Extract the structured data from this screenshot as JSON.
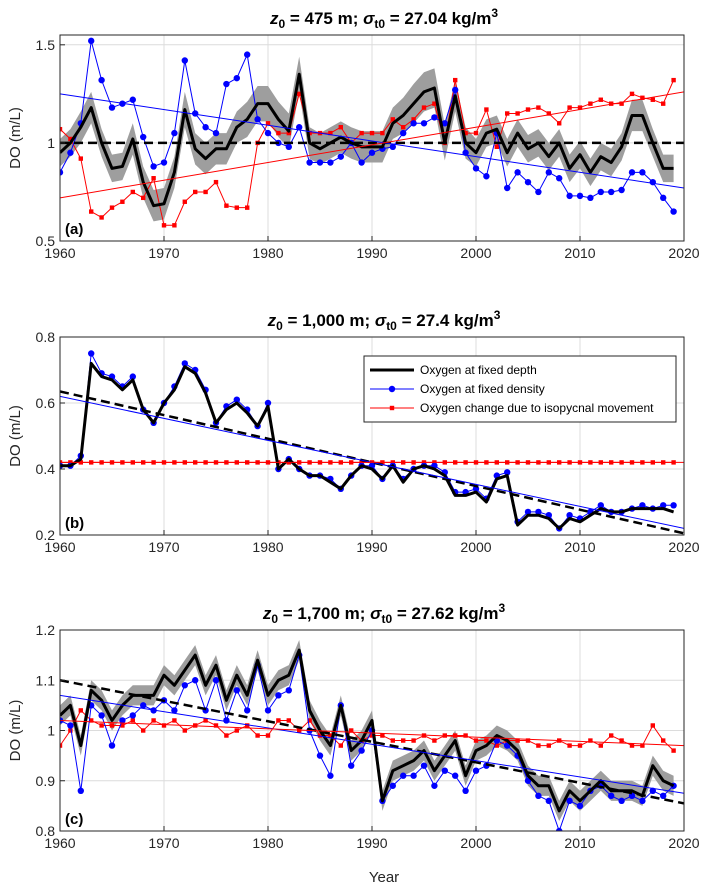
{
  "figure": {
    "xlabel": "Year"
  },
  "chart_data": [
    {
      "type": "line",
      "title": "z0 = 475 m; σt0 = 27.04 kg/m3",
      "title_parts": {
        "z": "z",
        "z_sub": "0",
        "z_rest": " = 475 m; ",
        "sigma": "σ",
        "sigma_sub": "t0",
        "sigma_rest": " = 27.04 kg/m",
        "sup": "3"
      },
      "panel_label": "(a)",
      "xlabel": "",
      "ylabel": "DO (m/L)",
      "xlim": [
        1960,
        2020
      ],
      "ylim": [
        0.5,
        1.55
      ],
      "xticks": [
        1960,
        1970,
        1980,
        1990,
        2000,
        2010,
        2020
      ],
      "yticks": [
        0.5,
        1,
        1.5
      ],
      "ytick_labels": [
        "0.5",
        "1",
        "1.5"
      ],
      "grid": true,
      "x": [
        1960,
        1961,
        1962,
        1963,
        1964,
        1965,
        1966,
        1967,
        1968,
        1969,
        1970,
        1971,
        1972,
        1973,
        1974,
        1975,
        1976,
        1977,
        1978,
        1979,
        1980,
        1981,
        1982,
        1983,
        1984,
        1985,
        1986,
        1987,
        1988,
        1989,
        1990,
        1991,
        1992,
        1993,
        1994,
        1995,
        1996,
        1997,
        1998,
        1999,
        2000,
        2001,
        2002,
        2003,
        2004,
        2005,
        2006,
        2007,
        2008,
        2009,
        2010,
        2011,
        2012,
        2013,
        2014,
        2015,
        2016,
        2017,
        2018,
        2019
      ],
      "series": [
        {
          "role": "fixed-depth",
          "values": [
            0.95,
            1.0,
            1.08,
            1.18,
            1.0,
            0.87,
            0.88,
            1.02,
            0.8,
            0.68,
            0.69,
            0.85,
            1.17,
            0.97,
            0.92,
            0.97,
            0.97,
            1.08,
            1.12,
            1.2,
            1.2,
            1.12,
            1.06,
            1.35,
            1.0,
            0.97,
            1.0,
            1.03,
            1.0,
            0.98,
            0.98,
            0.98,
            1.1,
            1.14,
            1.2,
            1.26,
            1.28,
            1.0,
            1.24,
            1.0,
            0.95,
            1.05,
            1.07,
            0.95,
            1.05,
            0.97,
            1.0,
            0.93,
            1.0,
            0.87,
            0.94,
            0.85,
            0.93,
            0.9,
            0.98,
            1.14,
            1.14,
            1.0,
            0.87,
            0.87
          ],
          "band": [
            0.07,
            0.07,
            0.08,
            0.08,
            0.07,
            0.07,
            0.07,
            0.08,
            0.08,
            0.08,
            0.08,
            0.08,
            0.09,
            0.08,
            0.08,
            0.08,
            0.08,
            0.08,
            0.09,
            0.09,
            0.09,
            0.09,
            0.09,
            0.09,
            0.08,
            0.08,
            0.08,
            0.08,
            0.08,
            0.08,
            0.08,
            0.08,
            0.08,
            0.09,
            0.1,
            0.1,
            0.1,
            0.09,
            0.08,
            0.08,
            0.07,
            0.07,
            0.07,
            0.07,
            0.07,
            0.07,
            0.07,
            0.07,
            0.07,
            0.07,
            0.07,
            0.07,
            0.07,
            0.07,
            0.07,
            0.08,
            0.08,
            0.07,
            0.07,
            0.07
          ]
        },
        {
          "role": "fixed-density",
          "values": [
            0.85,
            0.95,
            1.1,
            1.52,
            1.32,
            1.18,
            1.2,
            1.22,
            1.03,
            0.88,
            0.9,
            1.05,
            1.42,
            1.15,
            1.08,
            1.05,
            1.3,
            1.33,
            1.45,
            1.12,
            1.05,
            1.0,
            0.98,
            1.08,
            0.9,
            0.9,
            0.9,
            0.93,
            1.0,
            0.9,
            0.95,
            0.97,
            0.98,
            1.05,
            1.1,
            1.1,
            1.13,
            1.1,
            1.27,
            0.95,
            0.87,
            0.83,
            1.05,
            0.77,
            0.85,
            0.8,
            0.75,
            0.85,
            0.82,
            0.73,
            0.73,
            0.72,
            0.75,
            0.75,
            0.76,
            0.85,
            0.85,
            0.8,
            0.72,
            0.65
          ]
        },
        {
          "role": "isopycnal-movement",
          "values": [
            1.07,
            1.02,
            0.92,
            0.65,
            0.62,
            0.67,
            0.7,
            0.75,
            0.72,
            0.82,
            0.58,
            0.58,
            0.7,
            0.75,
            0.75,
            0.8,
            0.68,
            0.67,
            0.67,
            1.0,
            1.1,
            1.05,
            1.05,
            1.25,
            1.05,
            1.05,
            1.05,
            1.08,
            1.0,
            1.05,
            1.05,
            1.05,
            1.12,
            1.08,
            1.12,
            1.18,
            1.2,
            1.0,
            1.32,
            1.05,
            1.05,
            1.17,
            0.98,
            1.15,
            1.15,
            1.17,
            1.18,
            1.15,
            1.1,
            1.18,
            1.18,
            1.2,
            1.22,
            1.2,
            1.2,
            1.25,
            1.23,
            1.22,
            1.2,
            1.32
          ]
        }
      ],
      "trend_lines": [
        {
          "role": "fixed-depth",
          "y_start": 1.0,
          "y_end": 1.0
        },
        {
          "role": "fixed-density",
          "y_start": 1.25,
          "y_end": 0.77
        },
        {
          "role": "isopycnal-movement",
          "y_start": 0.72,
          "y_end": 1.26
        }
      ]
    },
    {
      "type": "line",
      "title": "z0 = 1,000 m; σt0 = 27.4 kg/m3",
      "title_parts": {
        "z": "z",
        "z_sub": "0",
        "z_rest": " = 1,000 m; ",
        "sigma": "σ",
        "sigma_sub": "t0",
        "sigma_rest": " = 27.4 kg/m",
        "sup": "3"
      },
      "panel_label": "(b)",
      "xlabel": "",
      "ylabel": "DO (m/L)",
      "xlim": [
        1960,
        2020
      ],
      "ylim": [
        0.2,
        0.8
      ],
      "xticks": [
        1960,
        1970,
        1980,
        1990,
        2000,
        2010,
        2020
      ],
      "yticks": [
        0.2,
        0.4,
        0.6,
        0.8
      ],
      "ytick_labels": [
        "0.2",
        "0.4",
        "0.6",
        "0.8"
      ],
      "grid": true,
      "legend": {
        "position": "top-right",
        "entries": [
          "Oxygen at fixed depth",
          "Oxygen at fixed density",
          "Oxygen change due to isopycnal movement"
        ]
      },
      "x": [
        1960,
        1961,
        1962,
        1963,
        1964,
        1965,
        1966,
        1967,
        1968,
        1969,
        1970,
        1971,
        1972,
        1973,
        1974,
        1975,
        1976,
        1977,
        1978,
        1979,
        1980,
        1981,
        1982,
        1983,
        1984,
        1985,
        1986,
        1987,
        1988,
        1989,
        1990,
        1991,
        1992,
        1993,
        1994,
        1995,
        1996,
        1997,
        1998,
        1999,
        2000,
        2001,
        2002,
        2003,
        2004,
        2005,
        2006,
        2007,
        2008,
        2009,
        2010,
        2011,
        2012,
        2013,
        2014,
        2015,
        2016,
        2017,
        2018,
        2019
      ],
      "series": [
        {
          "role": "fixed-depth",
          "values": [
            0.41,
            0.41,
            0.43,
            0.72,
            0.68,
            0.67,
            0.64,
            0.67,
            0.58,
            0.54,
            0.6,
            0.64,
            0.71,
            0.69,
            0.63,
            0.54,
            0.58,
            0.6,
            0.57,
            0.53,
            0.59,
            0.4,
            0.43,
            0.4,
            0.38,
            0.38,
            0.36,
            0.34,
            0.38,
            0.41,
            0.4,
            0.37,
            0.41,
            0.36,
            0.4,
            0.41,
            0.4,
            0.38,
            0.32,
            0.32,
            0.33,
            0.3,
            0.37,
            0.38,
            0.23,
            0.26,
            0.26,
            0.25,
            0.22,
            0.25,
            0.24,
            0.26,
            0.28,
            0.27,
            0.27,
            0.28,
            0.28,
            0.28,
            0.28,
            0.27
          ],
          "band": []
        },
        {
          "role": "fixed-density",
          "values": [
            0.41,
            0.41,
            0.44,
            0.75,
            0.69,
            0.68,
            0.65,
            0.68,
            0.58,
            0.54,
            0.6,
            0.65,
            0.72,
            0.7,
            0.64,
            0.54,
            0.59,
            0.61,
            0.58,
            0.53,
            0.6,
            0.4,
            0.43,
            0.4,
            0.38,
            0.38,
            0.37,
            0.34,
            0.38,
            0.41,
            0.41,
            0.37,
            0.41,
            0.37,
            0.4,
            0.41,
            0.41,
            0.39,
            0.33,
            0.33,
            0.34,
            0.31,
            0.38,
            0.39,
            0.24,
            0.27,
            0.27,
            0.26,
            0.22,
            0.26,
            0.25,
            0.27,
            0.29,
            0.27,
            0.27,
            0.28,
            0.29,
            0.28,
            0.29,
            0.29
          ]
        },
        {
          "role": "isopycnal-movement",
          "values": [
            0.42,
            0.42,
            0.42,
            0.42,
            0.42,
            0.42,
            0.42,
            0.42,
            0.42,
            0.42,
            0.42,
            0.42,
            0.42,
            0.42,
            0.42,
            0.42,
            0.42,
            0.42,
            0.42,
            0.42,
            0.42,
            0.42,
            0.42,
            0.42,
            0.42,
            0.42,
            0.42,
            0.42,
            0.42,
            0.42,
            0.42,
            0.42,
            0.42,
            0.42,
            0.42,
            0.42,
            0.42,
            0.42,
            0.42,
            0.42,
            0.42,
            0.42,
            0.42,
            0.42,
            0.42,
            0.42,
            0.42,
            0.42,
            0.42,
            0.42,
            0.42,
            0.42,
            0.42,
            0.42,
            0.42,
            0.42,
            0.42,
            0.42,
            0.42,
            0.42
          ]
        }
      ],
      "trend_lines": [
        {
          "role": "fixed-depth",
          "y_start": 0.635,
          "y_end": 0.205
        },
        {
          "role": "fixed-density",
          "y_start": 0.62,
          "y_end": 0.22
        },
        {
          "role": "isopycnal-movement",
          "y_start": 0.42,
          "y_end": 0.42
        }
      ]
    },
    {
      "type": "line",
      "title": "z0 = 1,700 m; σt0 = 27.62 kg/m3",
      "title_parts": {
        "z": "z",
        "z_sub": "0",
        "z_rest": " = 1,700 m; ",
        "sigma": "σ",
        "sigma_sub": "t0",
        "sigma_rest": " = 27.62 kg/m",
        "sup": "3"
      },
      "panel_label": "(c)",
      "xlabel": "Year",
      "ylabel": "DO (m/L)",
      "xlim": [
        1960,
        2020
      ],
      "ylim": [
        0.8,
        1.2
      ],
      "xticks": [
        1960,
        1970,
        1980,
        1990,
        2000,
        2010,
        2020
      ],
      "yticks": [
        0.8,
        0.9,
        1.0,
        1.1,
        1.2
      ],
      "ytick_labels": [
        "0.8",
        "0.9",
        "1",
        "1.1",
        "1.2"
      ],
      "grid": true,
      "x": [
        1960,
        1961,
        1962,
        1963,
        1964,
        1965,
        1966,
        1967,
        1968,
        1969,
        1970,
        1971,
        1972,
        1973,
        1974,
        1975,
        1976,
        1977,
        1978,
        1979,
        1980,
        1981,
        1982,
        1983,
        1984,
        1985,
        1986,
        1987,
        1988,
        1989,
        1990,
        1991,
        1992,
        1993,
        1994,
        1995,
        1996,
        1997,
        1998,
        1999,
        2000,
        2001,
        2002,
        2003,
        2004,
        2005,
        2006,
        2007,
        2008,
        2009,
        2010,
        2011,
        2012,
        2013,
        2014,
        2015,
        2016,
        2017,
        2018,
        2019
      ],
      "series": [
        {
          "role": "fixed-depth",
          "values": [
            1.03,
            1.05,
            0.97,
            1.08,
            1.06,
            1.02,
            1.05,
            1.07,
            1.07,
            1.07,
            1.11,
            1.09,
            1.12,
            1.15,
            1.09,
            1.13,
            1.06,
            1.11,
            1.07,
            1.14,
            1.07,
            1.1,
            1.11,
            1.16,
            1.04,
            1.0,
            0.97,
            1.05,
            0.96,
            0.98,
            1.02,
            0.86,
            0.92,
            0.93,
            0.94,
            0.96,
            0.92,
            0.95,
            0.98,
            0.91,
            0.96,
            0.97,
            0.99,
            0.98,
            0.96,
            0.91,
            0.89,
            0.89,
            0.84,
            0.88,
            0.86,
            0.88,
            0.9,
            0.88,
            0.88,
            0.88,
            0.87,
            0.93,
            0.9,
            0.89
          ],
          "band": [
            0.02,
            0.02,
            0.02,
            0.02,
            0.02,
            0.02,
            0.02,
            0.02,
            0.02,
            0.02,
            0.02,
            0.02,
            0.02,
            0.02,
            0.02,
            0.02,
            0.02,
            0.02,
            0.02,
            0.02,
            0.02,
            0.02,
            0.02,
            0.02,
            0.02,
            0.02,
            0.02,
            0.02,
            0.02,
            0.02,
            0.02,
            0.02,
            0.02,
            0.02,
            0.02,
            0.02,
            0.02,
            0.02,
            0.02,
            0.02,
            0.02,
            0.02,
            0.02,
            0.02,
            0.02,
            0.02,
            0.02,
            0.02,
            0.02,
            0.02,
            0.02,
            0.02,
            0.02,
            0.02,
            0.02,
            0.02,
            0.02,
            0.02,
            0.02,
            0.02
          ]
        },
        {
          "role": "fixed-density",
          "values": [
            1.02,
            1.01,
            0.88,
            1.05,
            1.03,
            0.97,
            1.02,
            1.03,
            1.05,
            1.04,
            1.06,
            1.04,
            1.09,
            1.1,
            1.04,
            1.1,
            1.02,
            1.08,
            1.04,
            1.13,
            1.04,
            1.07,
            1.08,
            1.15,
            1.0,
            0.95,
            0.91,
            1.05,
            0.93,
            0.96,
            1.0,
            0.86,
            0.89,
            0.91,
            0.91,
            0.93,
            0.89,
            0.92,
            0.91,
            0.88,
            0.92,
            0.93,
            0.98,
            0.97,
            0.95,
            0.9,
            0.87,
            0.86,
            0.8,
            0.86,
            0.85,
            0.88,
            0.89,
            0.87,
            0.86,
            0.87,
            0.86,
            0.88,
            0.87,
            0.89
          ]
        },
        {
          "role": "isopycnal-movement",
          "values": [
            0.97,
            1.0,
            1.04,
            1.02,
            1.01,
            1.01,
            1.01,
            1.02,
            1.0,
            1.02,
            1.01,
            1.02,
            1.0,
            1.01,
            1.02,
            1.01,
            0.99,
            1.0,
            1.01,
            0.99,
            0.99,
            1.02,
            1.02,
            1.0,
            1.02,
            0.99,
            0.99,
            0.97,
            1.0,
            0.98,
            0.99,
            0.99,
            0.98,
            0.98,
            0.98,
            0.99,
            0.98,
            0.99,
            0.99,
            0.99,
            0.98,
            0.98,
            0.97,
            0.98,
            0.98,
            0.98,
            0.97,
            0.97,
            0.98,
            0.97,
            0.97,
            0.98,
            0.97,
            0.99,
            0.98,
            0.97,
            0.97,
            1.01,
            0.98,
            0.96
          ]
        }
      ],
      "trend_lines": [
        {
          "role": "fixed-depth",
          "y_start": 1.1,
          "y_end": 0.855
        },
        {
          "role": "fixed-density",
          "y_start": 1.07,
          "y_end": 0.875
        },
        {
          "role": "isopycnal-movement",
          "y_start": 1.02,
          "y_end": 0.97
        }
      ]
    }
  ],
  "colors": {
    "fixed_depth": "#000000",
    "fixed_density": "#0000ff",
    "isopycnal_movement": "#ff0000",
    "band": "#9e9e9e",
    "grid": "#dcdcdc"
  }
}
